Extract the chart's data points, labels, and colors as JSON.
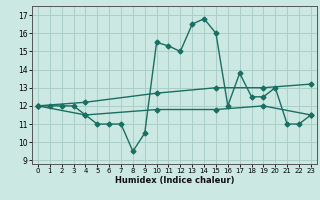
{
  "xlabel": "Humidex (Indice chaleur)",
  "bg_color": "#cce8e2",
  "grid_color": "#aacfc8",
  "line_color": "#1a6e62",
  "xlim": [
    -0.5,
    23.5
  ],
  "ylim": [
    8.8,
    17.5
  ],
  "yticks": [
    9,
    10,
    11,
    12,
    13,
    14,
    15,
    16,
    17
  ],
  "xticks": [
    0,
    1,
    2,
    3,
    4,
    5,
    6,
    7,
    8,
    9,
    10,
    11,
    12,
    13,
    14,
    15,
    16,
    17,
    18,
    19,
    20,
    21,
    22,
    23
  ],
  "series1_x": [
    0,
    1,
    2,
    3,
    4,
    5,
    6,
    7,
    8,
    9,
    10,
    11,
    12,
    13,
    14,
    15,
    16,
    17,
    18,
    19,
    20,
    21,
    22,
    23
  ],
  "series1_y": [
    12,
    12,
    12,
    12,
    11.5,
    11,
    11,
    11,
    9.5,
    10.5,
    15.5,
    15.3,
    15,
    16.5,
    16.8,
    16,
    12,
    13.8,
    12.5,
    12.5,
    13,
    11,
    11,
    11.5
  ],
  "series2_x": [
    0,
    4,
    10,
    15,
    19,
    23
  ],
  "series2_y": [
    12,
    12.2,
    12.7,
    13.0,
    13.0,
    13.2
  ],
  "series3_x": [
    0,
    4,
    10,
    15,
    19,
    23
  ],
  "series3_y": [
    12,
    11.5,
    11.8,
    11.8,
    12.0,
    11.5
  ],
  "marker_size": 2.5,
  "line_width": 1.0
}
